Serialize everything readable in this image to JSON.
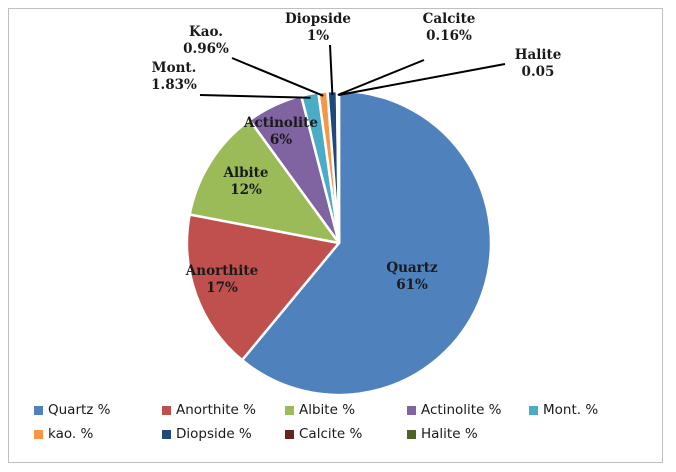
{
  "chart_data": {
    "type": "pie",
    "title": "",
    "slices": [
      {
        "name": "Quartz  %",
        "value": 61,
        "color": "#4f81bd",
        "label_lines": [
          "Quartz",
          "61%"
        ]
      },
      {
        "name": "Anorthite %",
        "value": 17,
        "color": "#c0504d",
        "label_lines": [
          "Anorthite",
          "17%"
        ]
      },
      {
        "name": "Albite %",
        "value": 12,
        "color": "#9bbb59",
        "label_lines": [
          "Albite",
          "12%"
        ]
      },
      {
        "name": "Actinolite %",
        "value": 6,
        "color": "#8064a2",
        "label_lines": [
          "Actinolite",
          "6%"
        ]
      },
      {
        "name": "Mont. %",
        "value": 1.83,
        "color": "#4bacc6",
        "label_lines": [
          "Mont.",
          "1.83%"
        ]
      },
      {
        "name": "kao. %",
        "value": 0.96,
        "color": "#f79646",
        "label_lines": [
          "Kao.",
          "0.96%"
        ]
      },
      {
        "name": "Diopside %",
        "value": 1,
        "color": "#1f497d",
        "label_lines": [
          "Diopside",
          "1%"
        ]
      },
      {
        "name": "Calcite %",
        "value": 0.16,
        "color": "#632523",
        "label_lines": [
          "Calcite",
          "0.16%"
        ]
      },
      {
        "name": "Halite %",
        "value": 0.05,
        "color": "#4f6228",
        "label_lines": [
          "Halite",
          "0.05"
        ]
      }
    ],
    "legend_position": "bottom"
  }
}
